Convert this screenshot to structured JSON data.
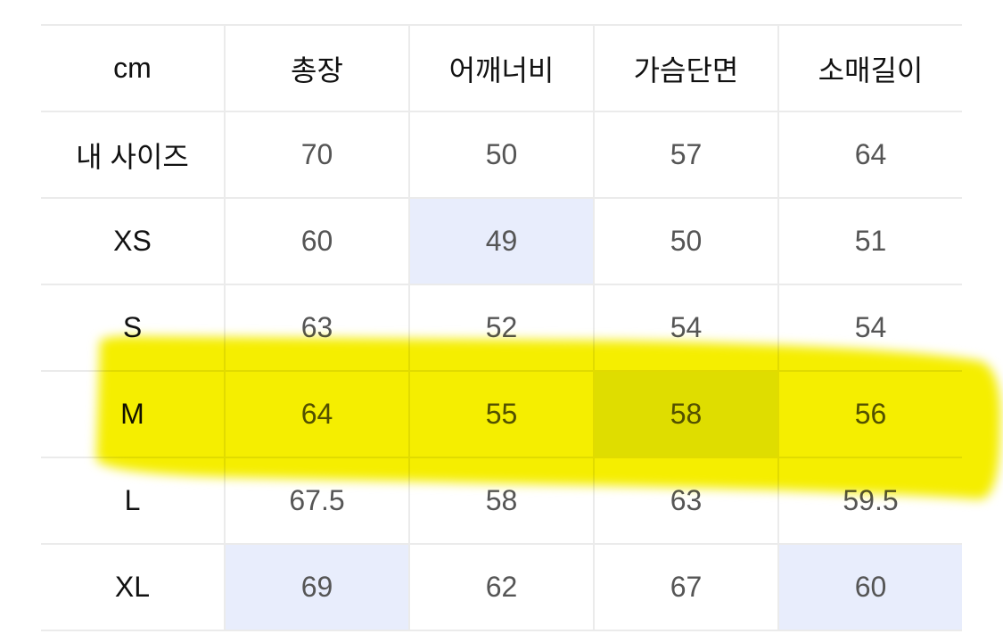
{
  "table": {
    "headers": [
      "cm",
      "총장",
      "어깨너비",
      "가슴단면",
      "소매길이"
    ],
    "rows": [
      {
        "label": "내 사이즈",
        "values": [
          "70",
          "50",
          "57",
          "64"
        ],
        "highlight": [
          false,
          false,
          false,
          false
        ]
      },
      {
        "label": "XS",
        "values": [
          "60",
          "49",
          "50",
          "51"
        ],
        "highlight": [
          false,
          true,
          false,
          false
        ]
      },
      {
        "label": "S",
        "values": [
          "63",
          "52",
          "54",
          "54"
        ],
        "highlight": [
          false,
          false,
          false,
          false
        ]
      },
      {
        "label": "M",
        "values": [
          "64",
          "55",
          "58",
          "56"
        ],
        "highlight": [
          false,
          false,
          true,
          false
        ]
      },
      {
        "label": "L",
        "values": [
          "67.5",
          "58",
          "63",
          "59.5"
        ],
        "highlight": [
          false,
          false,
          false,
          false
        ]
      },
      {
        "label": "XL",
        "values": [
          "69",
          "62",
          "67",
          "60"
        ],
        "highlight": [
          true,
          false,
          false,
          true
        ]
      }
    ]
  },
  "colors": {
    "cell_highlight": "#e8edfc",
    "marker": "#f5ee00",
    "border": "#ebebeb"
  },
  "annotation": {
    "type": "yellow-highlighter",
    "row": "M"
  }
}
